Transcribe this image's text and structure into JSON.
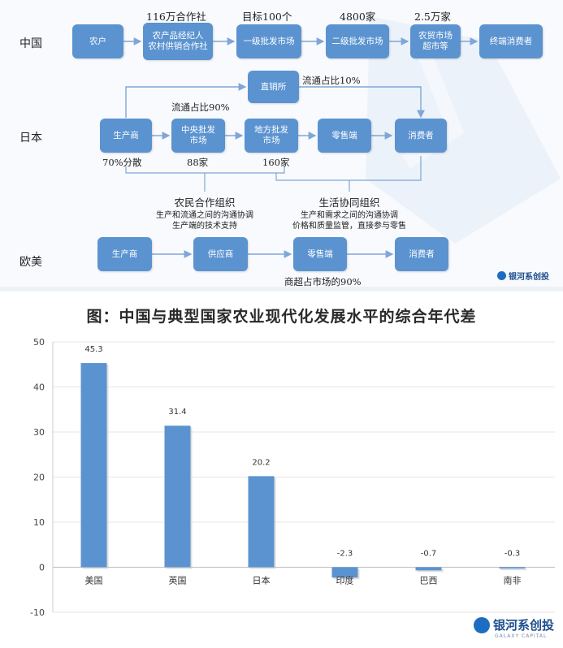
{
  "diagram": {
    "rows": {
      "china": "中国",
      "japan": "日本",
      "west": "欧美"
    },
    "china": {
      "boxes": [
        "农户",
        "农产品经纪人\n农村供销合作社",
        "一级批发市场",
        "二级批发市场",
        "农贸市场\n超市等",
        "终端消费者"
      ],
      "counts": [
        "116万合作社",
        "目标100个",
        "4800家",
        "2.5万家"
      ]
    },
    "japan": {
      "boxes": {
        "producer": "生产商",
        "central": "中央批发\n市场",
        "local": "地方批发\n市场",
        "retail": "零售端",
        "consumer": "消费者",
        "direct": "直销所"
      },
      "notes": {
        "direct_share": "流通占比10%",
        "wholesale_share": "流通占比90%",
        "producer_share": "70%分散",
        "central_count": "88家",
        "local_count": "160家"
      },
      "org_left": {
        "title": "农民合作组织",
        "line1": "生产和流通之间的沟通协调",
        "line2": "生产端的技术支持"
      },
      "org_right": {
        "title": "生活协同组织",
        "line1": "生产和需求之间的沟通协调",
        "line2": "价格和质量监管，直接参与零售"
      }
    },
    "west": {
      "boxes": [
        "生产商",
        "供应商",
        "零售端",
        "消费者"
      ],
      "note": "商超占市场的90%"
    },
    "logo": "银河系创投"
  },
  "chart_data": {
    "type": "bar",
    "title": "图：中国与典型国家农业现代化发展水平的综合年代差",
    "categories": [
      "美国",
      "英国",
      "日本",
      "印度",
      "巴西",
      "南非"
    ],
    "values": [
      45.3,
      31.4,
      20.2,
      -2.3,
      -0.7,
      -0.3
    ],
    "value_labels": [
      "45.3",
      "31.4",
      "20.2",
      "-2.3",
      "-0.7",
      "-0.3"
    ],
    "yticks": [
      "50",
      "40",
      "30",
      "20",
      "10",
      "0",
      "-10"
    ],
    "ylim": [
      -10,
      50
    ],
    "grid": true,
    "bar_color": "#5b93d0",
    "logo": "银河系创投",
    "logo_sub": "GALAXY CAPITAL"
  }
}
